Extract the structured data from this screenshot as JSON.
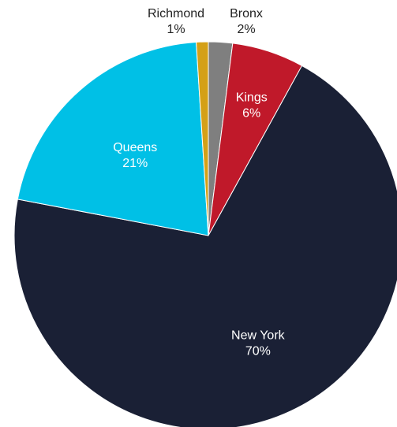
{
  "chart_data": {
    "type": "pie",
    "title": "",
    "slices": [
      {
        "name": "Bronx",
        "value": 2,
        "label": "2%",
        "color": "#7f7f7f",
        "label_position": "outside"
      },
      {
        "name": "Kings",
        "value": 6,
        "label": "6%",
        "color": "#c0192a",
        "label_position": "inside"
      },
      {
        "name": "New York",
        "value": 70,
        "label": "70%",
        "color": "#1a2035",
        "label_position": "inside"
      },
      {
        "name": "Queens",
        "value": 21,
        "label": "21%",
        "color": "#00c0e6",
        "label_position": "inside"
      },
      {
        "name": "Richmond",
        "value": 1,
        "label": "1%",
        "color": "#d4a017",
        "label_position": "outside"
      }
    ],
    "start_angle_deg": 0,
    "direction": "clockwise",
    "legend": "none"
  }
}
